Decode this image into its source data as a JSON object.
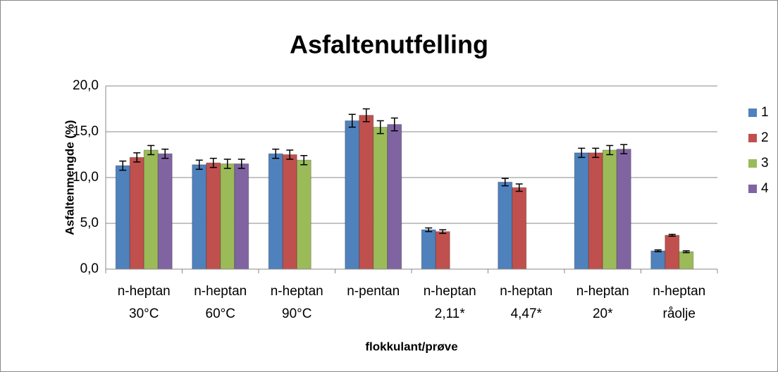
{
  "chart_data": {
    "type": "bar",
    "title": "Asfaltenutfelling",
    "x_label": "flokkulant/prøve",
    "y_label": "Asfaltenmengde (%)",
    "categories": [
      "n-heptan\n30°C",
      "n-heptan\n60°C",
      "n-heptan\n90°C",
      "n-pentan",
      "n-heptan\n2,11*",
      "n-heptan\n4,47*",
      "n-heptan\n20*",
      "n-heptan\nråolje"
    ],
    "series": [
      {
        "name": "1",
        "color": "#4f81bd",
        "values": [
          11.3,
          11.4,
          12.6,
          16.2,
          4.3,
          9.5,
          12.7,
          2.0
        ],
        "errors": [
          0.5,
          0.5,
          0.5,
          0.7,
          0.2,
          0.4,
          0.5,
          0.1
        ]
      },
      {
        "name": "2",
        "color": "#c0504d",
        "values": [
          12.2,
          11.6,
          12.5,
          16.8,
          4.1,
          8.9,
          12.7,
          3.7
        ],
        "errors": [
          0.5,
          0.5,
          0.5,
          0.7,
          0.2,
          0.4,
          0.5,
          0.1
        ]
      },
      {
        "name": "3",
        "color": "#9bbb59",
        "values": [
          13.0,
          11.5,
          11.9,
          15.5,
          null,
          null,
          13.0,
          1.9
        ],
        "errors": [
          0.5,
          0.5,
          0.5,
          0.7,
          null,
          null,
          0.5,
          0.1
        ]
      },
      {
        "name": "4",
        "color": "#8064a2",
        "values": [
          12.6,
          11.5,
          null,
          15.8,
          null,
          null,
          13.1,
          null
        ],
        "errors": [
          0.5,
          0.5,
          null,
          0.7,
          null,
          null,
          0.5,
          null
        ]
      }
    ],
    "ylim": [
      0,
      20
    ],
    "yticks": [
      {
        "value": 0,
        "label": "0,0"
      },
      {
        "value": 5,
        "label": "5,0"
      },
      {
        "value": 10,
        "label": "10,0"
      },
      {
        "value": 15,
        "label": "15,0"
      },
      {
        "value": 20,
        "label": "20,0"
      }
    ],
    "grid": true,
    "legend": "right"
  }
}
